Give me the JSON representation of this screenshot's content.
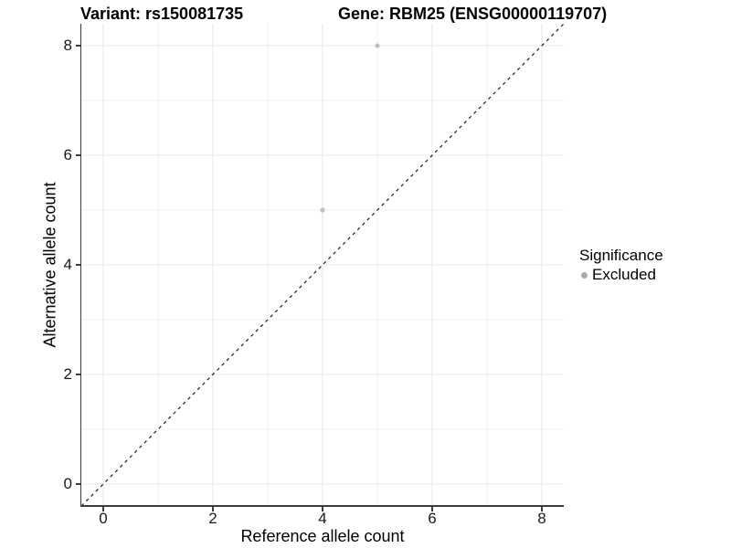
{
  "chart_data": {
    "type": "scatter",
    "title_left": "Variant: rs150081735",
    "title_right": "Gene: RBM25 (ENSG00000119707)",
    "xlabel": "Reference allele count",
    "ylabel": "Alternative allele count",
    "xlim": [
      -0.4,
      8.4
    ],
    "ylim": [
      -0.4,
      8.4
    ],
    "xticks": [
      0,
      2,
      4,
      6,
      8
    ],
    "yticks": [
      0,
      2,
      4,
      6,
      8
    ],
    "minor_gridlines": [
      1,
      3,
      5,
      7
    ],
    "grid": true,
    "legend_position": "right",
    "identity_line": {
      "style": "dashed",
      "from": [
        -0.4,
        -0.4
      ],
      "to": [
        8.4,
        8.4
      ]
    },
    "series": [
      {
        "name": "Excluded",
        "points": [
          {
            "x": 5,
            "y": 8
          },
          {
            "x": 4,
            "y": 5
          }
        ]
      }
    ],
    "legend": {
      "title": "Significance",
      "entries": [
        {
          "label": "Excluded"
        }
      ]
    },
    "colors": {
      "point": "#c0c0c0",
      "legend_point": "#ababab",
      "grid_major": "#e7e7e7",
      "grid_minor": "#f2f2f2",
      "axis": "#3c3c3c",
      "dashed_line": "#1c1c1c",
      "text": "#000000",
      "background": "#ffffff"
    }
  }
}
